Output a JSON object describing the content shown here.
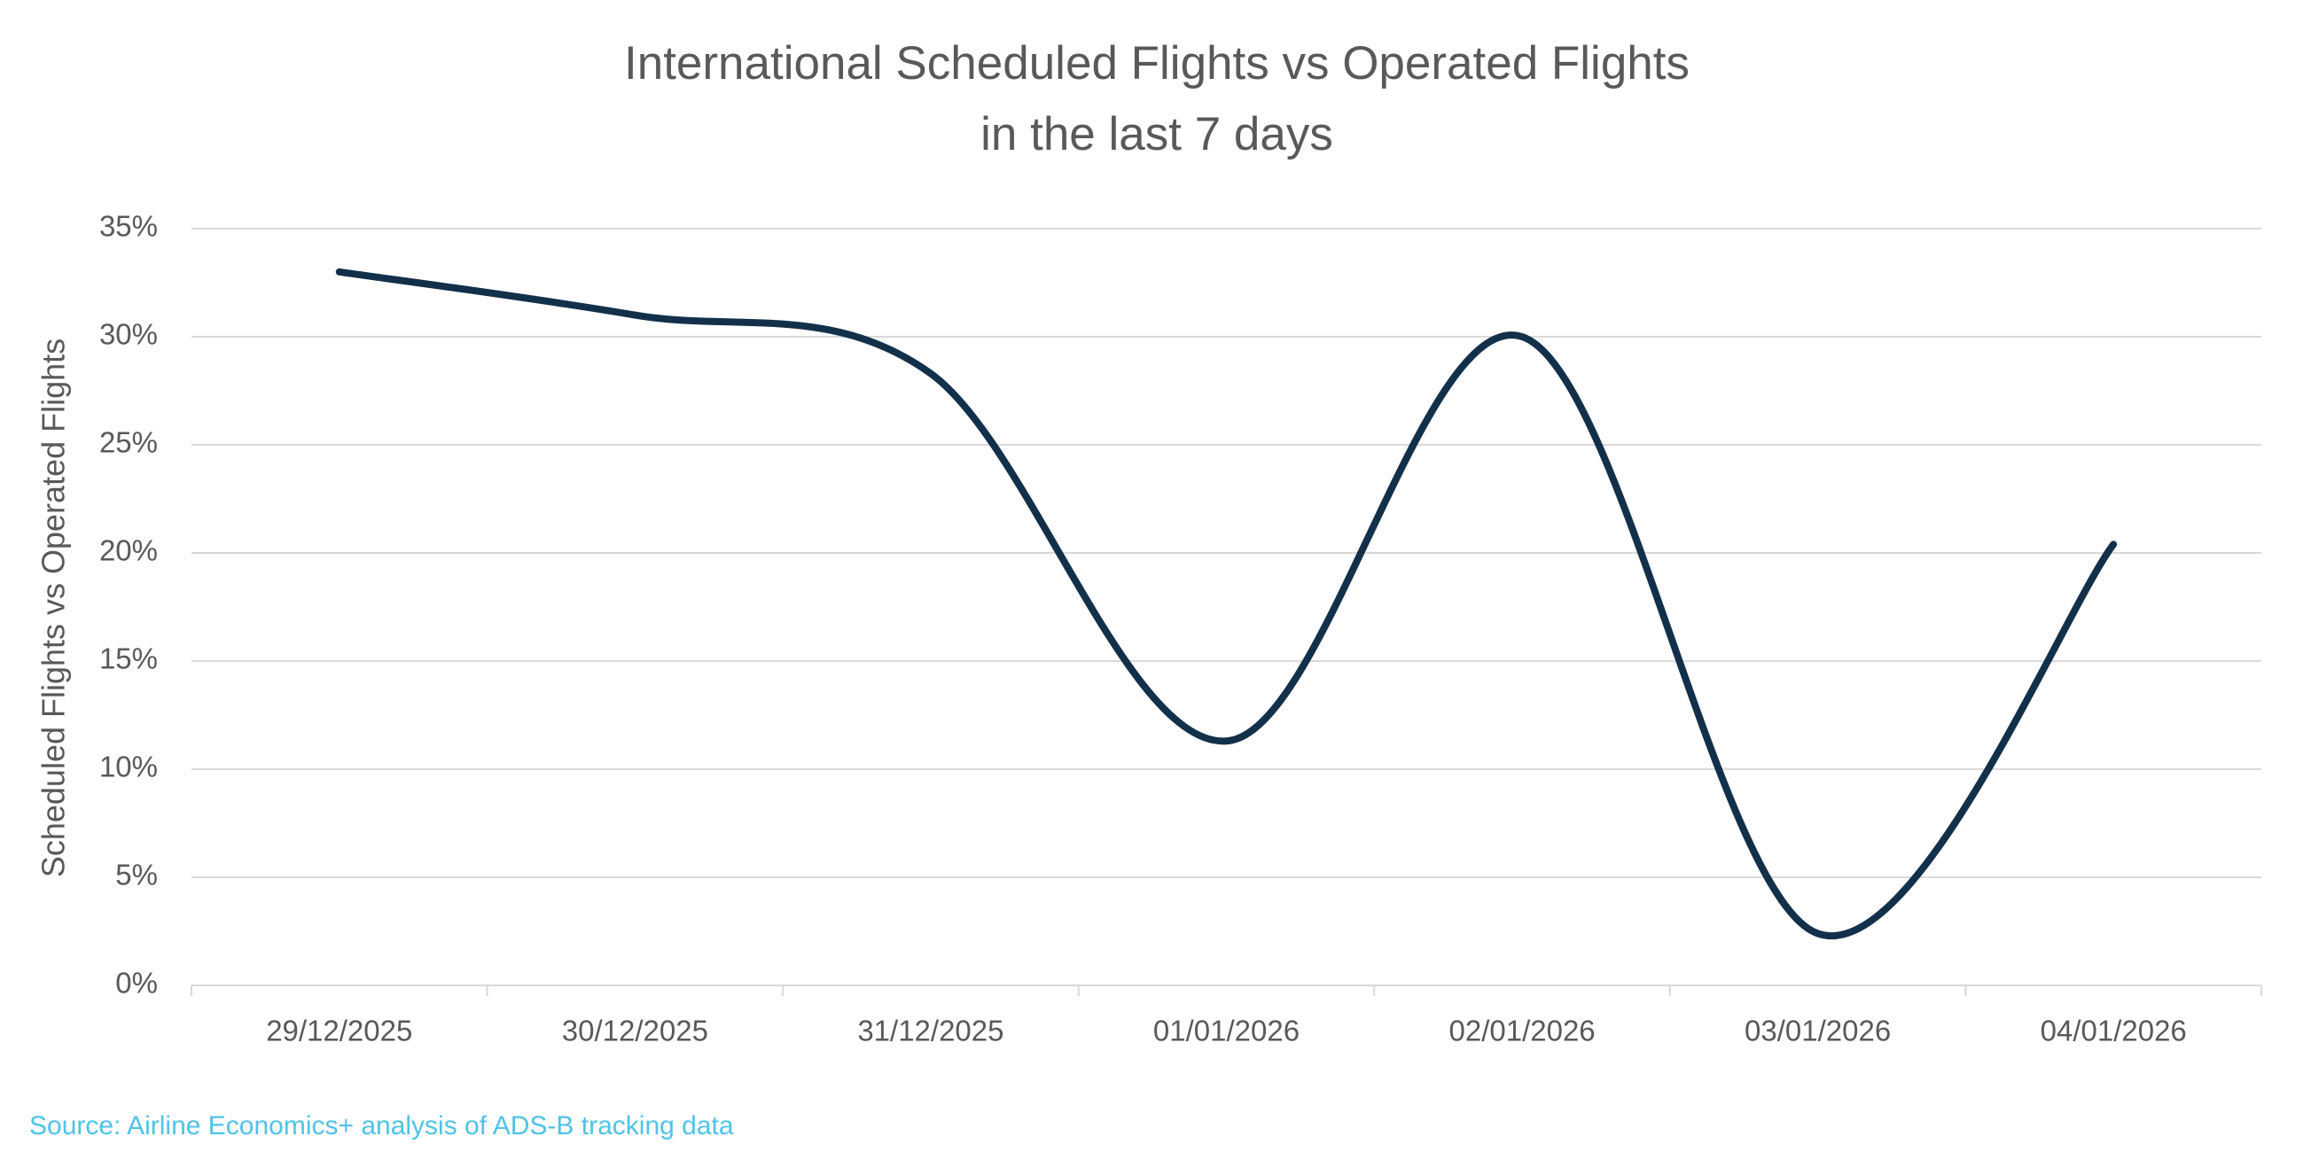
{
  "chart_data": {
    "type": "line",
    "title": "International Scheduled Flights vs Operated Flights",
    "subtitle": "in the last 7 days",
    "y_label": "Scheduled Flights vs Operated Flights",
    "source": "Source: Airline Economics+ analysis of ADS-B tracking data",
    "categories": [
      "29/12/2025",
      "30/12/2025",
      "31/12/2025",
      "01/01/2026",
      "02/01/2026",
      "03/01/2026",
      "04/01/2026"
    ],
    "series": [
      {
        "color": "#13304a",
        "values": [
          33,
          31,
          28.3,
          11.3,
          30,
          2.4,
          20.4
        ]
      }
    ],
    "ylim": [
      0,
      35
    ],
    "yticks": [
      {
        "value": 0,
        "label": "0%"
      },
      {
        "value": 5,
        "label": "5%"
      },
      {
        "value": 10,
        "label": "10%"
      },
      {
        "value": 15,
        "label": "15%"
      },
      {
        "value": 20,
        "label": "20%"
      },
      {
        "value": 25,
        "label": "25%"
      },
      {
        "value": 30,
        "label": "30%"
      },
      {
        "value": 35,
        "label": "35%"
      }
    ],
    "grid": true,
    "smooth": true
  }
}
